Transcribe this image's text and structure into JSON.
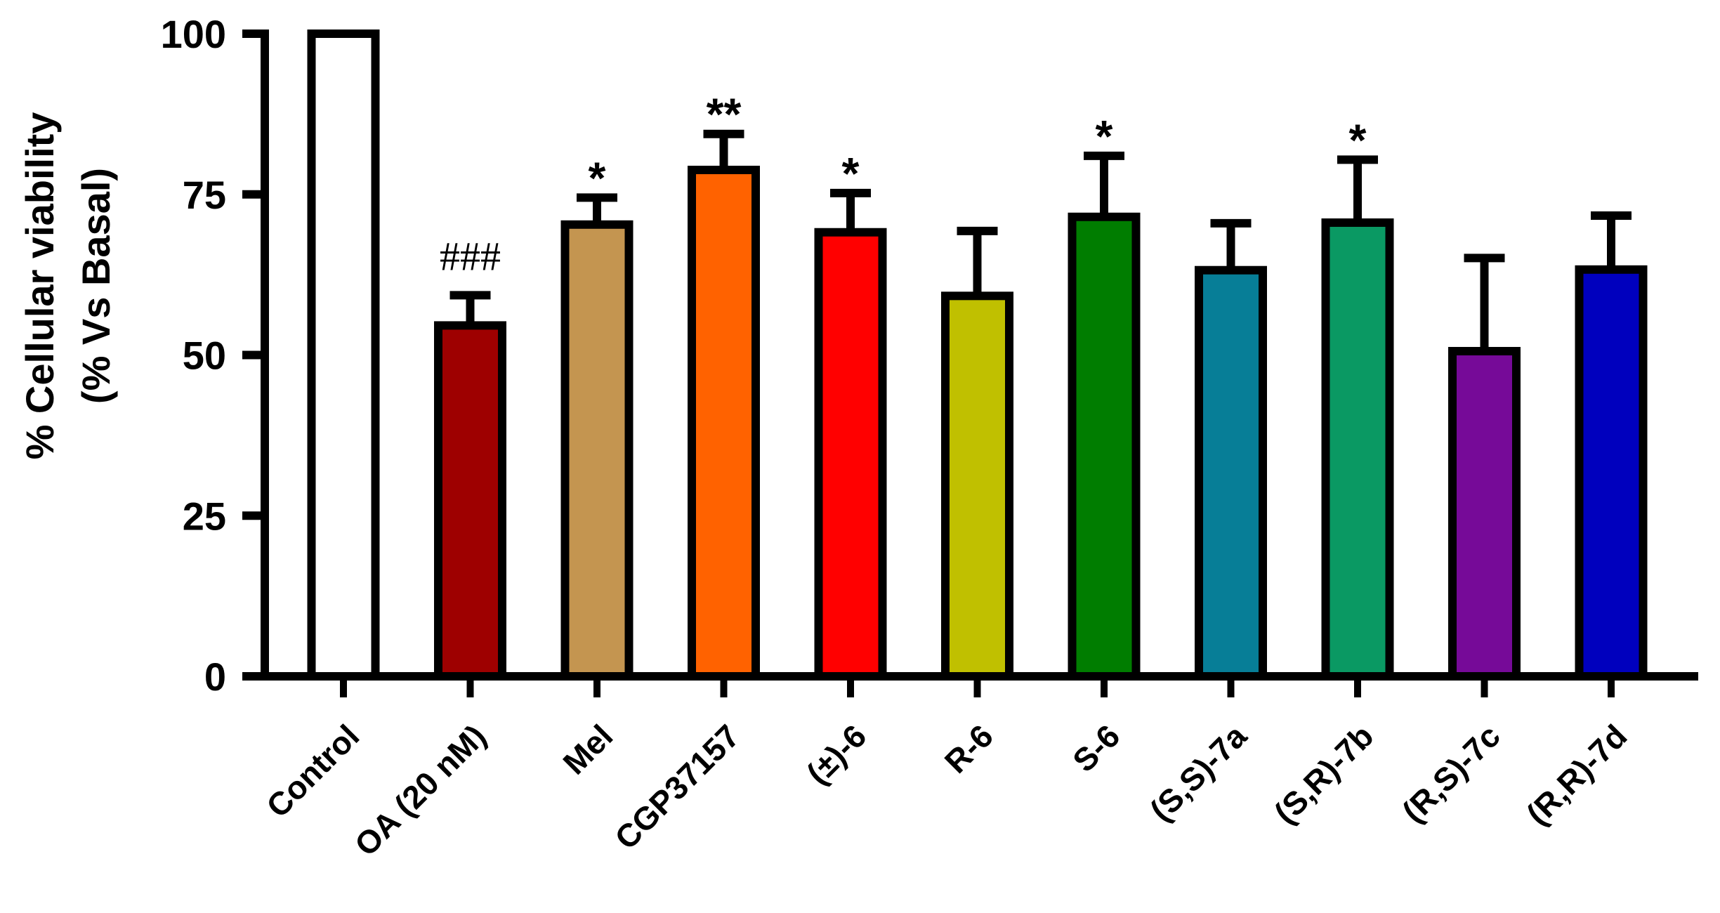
{
  "chart_data": {
    "type": "bar",
    "title": "",
    "xlabel": "",
    "ylabel": "% Cellular viability (% Vs Basal)",
    "ylabel_lines": [
      "% Cellular viability",
      "(% Vs Basal)"
    ],
    "ylim": [
      0,
      100
    ],
    "yticks": [
      0,
      25,
      50,
      75,
      100
    ],
    "grid": false,
    "legend": null,
    "error_bars": "SEM (upper only)",
    "categories": [
      "Control",
      "OA (20 nM)",
      "Mel",
      "CGP37157",
      "(±)-6",
      "R-6",
      "S-6",
      "(S,S)-7a",
      "(S,R)-7b",
      "(R,S)-7c",
      "(R,R)-7d"
    ],
    "values": [
      100,
      54.6,
      70.3,
      78.8,
      69.1,
      59.2,
      71.5,
      63.2,
      70.6,
      50.6,
      63.3
    ],
    "errors": [
      0,
      4.7,
      4.2,
      5.6,
      6.1,
      10.1,
      9.5,
      7.3,
      9.8,
      14.5,
      8.4
    ],
    "colors": [
      "#FFFFFF",
      "#9E0000",
      "#C49550",
      "#FF6200",
      "#FF0000",
      "#C0C000",
      "#007D00",
      "#077E97",
      "#0A9963",
      "#760A98",
      "#0000BE"
    ],
    "significance": [
      "",
      "###",
      "*",
      "**",
      "*",
      "",
      "*",
      "",
      "*",
      "",
      ""
    ]
  }
}
